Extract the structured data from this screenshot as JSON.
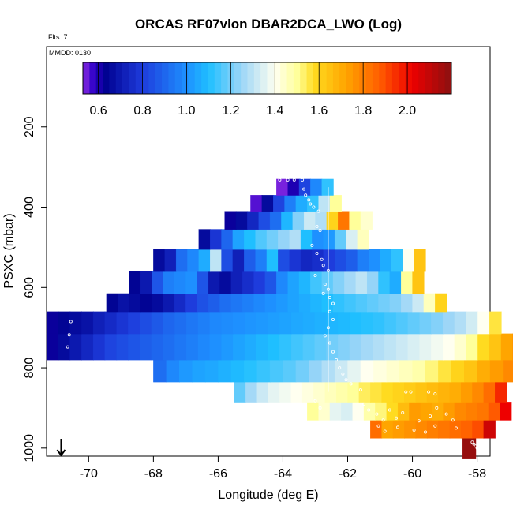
{
  "chart_data": {
    "type": "heatmap",
    "title": "ORCAS RF07vlon DBAR2DCA_LWO (Log)",
    "flights_label": "Flts: 7",
    "date_label": "MMDD: 0130",
    "xlabel": "Longitude (deg E)",
    "ylabel": "PSXC (mbar)",
    "xlim": [
      -71.3,
      -57.6
    ],
    "ylim": [
      1020,
      0
    ],
    "x_ticks": [
      -70,
      -68,
      -66,
      -64,
      -62,
      -60,
      -58
    ],
    "y_ticks": [
      200,
      400,
      600,
      800,
      1000
    ],
    "colorbar": {
      "range": [
        0.53,
        2.2
      ],
      "ticks": [
        0.6,
        0.8,
        1.0,
        1.2,
        1.4,
        1.6,
        1.8,
        2.0
      ],
      "tick_labels": [
        "0.6",
        "0.8",
        "1.0",
        "1.2",
        "1.4",
        "1.6",
        "1.8",
        "2.0"
      ],
      "stops": [
        {
          "v": 0.53,
          "c": "#8a2be2"
        },
        {
          "v": 0.58,
          "c": "#3000c8"
        },
        {
          "v": 0.63,
          "c": "#000090"
        },
        {
          "v": 0.8,
          "c": "#1e3cdc"
        },
        {
          "v": 1.0,
          "c": "#1e90ff"
        },
        {
          "v": 1.1,
          "c": "#1fbfff"
        },
        {
          "v": 1.25,
          "c": "#9dd6f7"
        },
        {
          "v": 1.4,
          "c": "#fffff0"
        },
        {
          "v": 1.5,
          "c": "#ffff9a"
        },
        {
          "v": 1.58,
          "c": "#ffdb20"
        },
        {
          "v": 1.72,
          "c": "#ffa500"
        },
        {
          "v": 1.88,
          "c": "#ff5a00"
        },
        {
          "v": 2.02,
          "c": "#ee0000"
        },
        {
          "v": 2.2,
          "c": "#8b1010"
        }
      ]
    },
    "surface_marker_lon": -70.85,
    "rows": [
      {
        "p": 1000,
        "lon0": -58.45,
        "dlon": 0.4,
        "v": [
          2.18
        ]
      },
      {
        "p": 950,
        "lon0": -61.3,
        "dlon": 0.35,
        "v": [
          1.84,
          1.72,
          1.74,
          1.76,
          1.78,
          1.8,
          1.82,
          1.84,
          1.86,
          1.9,
          2.08
        ]
      },
      {
        "p": 910,
        "lon0": -63.25,
        "dlon": 0.35,
        "v": [
          1.5,
          1.44,
          1.36,
          1.34,
          1.4,
          1.48,
          1.52,
          1.58,
          1.66,
          1.74,
          1.72,
          1.7,
          1.74,
          1.78,
          1.8,
          1.82,
          1.88,
          2.02
        ]
      },
      {
        "p": 860,
        "lon0": -65.5,
        "dlon": 0.35,
        "v": [
          1.18,
          1.26,
          1.32,
          1.36,
          1.38,
          1.4,
          1.42,
          1.44,
          1.46,
          1.48,
          1.5,
          1.54,
          1.56,
          1.58,
          1.6,
          1.62,
          1.64,
          1.66,
          1.68,
          1.7,
          1.74,
          1.78,
          1.84,
          1.96
        ]
      },
      {
        "p": 810,
        "lon0": -68.0,
        "dlon": 0.4,
        "v": [
          0.92,
          0.98,
          1.02,
          1.04,
          1.05,
          1.07,
          1.09,
          1.11,
          1.13,
          1.15,
          1.17,
          1.2,
          1.24,
          1.28,
          1.32,
          1.36,
          1.4,
          1.42,
          1.44,
          1.46,
          1.48,
          1.52,
          1.56,
          1.6,
          1.64,
          1.7,
          1.74,
          1.78,
          1.86
        ]
      },
      {
        "p": 750,
        "lon0": -71.3,
        "dlon": 0.36,
        "v": [
          0.62,
          0.66,
          0.7,
          0.74,
          0.78,
          0.82,
          0.84,
          0.86,
          0.88,
          0.9,
          0.92,
          0.94,
          0.96,
          0.98,
          1.0,
          1.02,
          1.04,
          1.06,
          1.08,
          1.1,
          1.12,
          1.14,
          1.16,
          1.18,
          1.2,
          1.22,
          1.24,
          1.26,
          1.28,
          1.3,
          1.32,
          1.34,
          1.36,
          1.38,
          1.4,
          1.44,
          1.5,
          1.58,
          1.64,
          1.72,
          1.78
        ]
      },
      {
        "p": 680,
        "lon0": -71.3,
        "dlon": 0.36,
        "v": [
          0.62,
          0.64,
          0.66,
          0.68,
          0.72,
          0.75,
          0.78,
          0.81,
          0.84,
          0.87,
          0.9,
          0.92,
          0.94,
          0.96,
          0.98,
          0.99,
          1.0,
          1.01,
          1.02,
          1.03,
          1.04,
          1.05,
          1.06,
          1.07,
          1.08,
          1.09,
          1.1,
          1.11,
          1.12,
          1.14,
          1.16,
          1.18,
          1.2,
          1.22,
          1.25,
          1.28,
          1.33,
          1.4,
          1.56
        ]
      },
      {
        "p": 640,
        "lon0": -69.45,
        "dlon": 0.35,
        "v": [
          0.64,
          0.68,
          0.66,
          0.64,
          0.66,
          0.7,
          0.75,
          0.8,
          0.85,
          0.88,
          0.92,
          0.94,
          0.96,
          0.98,
          1.0,
          1.02,
          1.04,
          1.06,
          1.08,
          1.1,
          1.12,
          1.14,
          1.16,
          1.18,
          1.2,
          1.22,
          1.26,
          1.32,
          1.46,
          1.6
        ]
      },
      {
        "p": 590,
        "lon0": -68.75,
        "dlon": 0.35,
        "v": [
          0.64,
          0.7,
          0.86,
          0.96,
          0.98,
          1.0,
          0.86,
          0.7,
          0.66,
          0.72,
          0.76,
          0.8,
          0.86,
          0.98,
          1.04,
          1.08,
          1.14,
          1.18,
          1.22,
          1.26,
          1.3,
          1.24,
          1.12,
          1.06,
          1.5,
          1.64
        ]
      },
      {
        "p": 530,
        "lon0": -68.0,
        "dlon": 0.35,
        "v": [
          0.66,
          0.72,
          0.92,
          0.98,
          1.06,
          1.3,
          0.84,
          0.72,
          0.88,
          0.96,
          1.1,
          0.84,
          0.78,
          0.74,
          0.76,
          0.8,
          0.84,
          0.88,
          0.96,
          1.0,
          1.06,
          1.12,
          1.4,
          1.64
        ]
      },
      {
        "p": 480,
        "lon0": -66.6,
        "dlon": 0.35,
        "v": [
          0.66,
          0.78,
          0.9,
          1.04,
          1.1,
          1.16,
          1.2,
          1.24,
          1.28,
          1.1,
          1.0,
          1.02,
          1.18,
          1.34,
          1.46
        ]
      },
      {
        "p": 430,
        "lon0": -65.8,
        "dlon": 0.35,
        "v": [
          0.62,
          0.66,
          0.74,
          0.84,
          0.92,
          1.08,
          1.22,
          1.32,
          1.28,
          1.6,
          1.82,
          1.5,
          1.44
        ]
      },
      {
        "p": 390,
        "lon0": -65.0,
        "dlon": 0.35,
        "v": [
          0.56,
          0.66,
          0.82,
          0.96,
          1.06,
          1.12,
          1.3,
          1.5
        ]
      },
      {
        "p": 350,
        "lon0": -64.2,
        "dlon": 0.35,
        "v": [
          0.54,
          0.6,
          0.82,
          0.98,
          1.12
        ]
      }
    ],
    "white_line": {
      "lon": -62.6,
      "p_from": 350,
      "p_to": 860
    },
    "markers": [
      [
        -70.55,
        685
      ],
      [
        -70.6,
        718
      ],
      [
        -70.65,
        748
      ],
      [
        -64.1,
        332
      ],
      [
        -63.85,
        332
      ],
      [
        -63.65,
        332
      ],
      [
        -63.4,
        332
      ],
      [
        -63.35,
        355
      ],
      [
        -63.3,
        370
      ],
      [
        -63.2,
        382
      ],
      [
        -63.15,
        392
      ],
      [
        -63.05,
        400
      ],
      [
        -62.9,
        410
      ],
      [
        -62.95,
        448
      ],
      [
        -62.85,
        458
      ],
      [
        -63.1,
        495
      ],
      [
        -62.95,
        515
      ],
      [
        -62.8,
        530
      ],
      [
        -62.75,
        545
      ],
      [
        -62.6,
        558
      ],
      [
        -63.0,
        570
      ],
      [
        -62.7,
        592
      ],
      [
        -62.6,
        605
      ],
      [
        -62.75,
        615
      ],
      [
        -62.55,
        625
      ],
      [
        -62.45,
        640
      ],
      [
        -62.55,
        660
      ],
      [
        -62.45,
        680
      ],
      [
        -62.6,
        700
      ],
      [
        -62.7,
        720
      ],
      [
        -62.55,
        738
      ],
      [
        -62.45,
        760
      ],
      [
        -62.35,
        780
      ],
      [
        -62.25,
        800
      ],
      [
        -62.15,
        815
      ],
      [
        -62.05,
        830
      ],
      [
        -61.9,
        840
      ],
      [
        -61.6,
        855
      ],
      [
        -60.2,
        860
      ],
      [
        -60.05,
        860
      ],
      [
        -59.5,
        860
      ],
      [
        -59.3,
        865
      ],
      [
        -63.0,
        882
      ],
      [
        -62.85,
        900
      ],
      [
        -61.5,
        890
      ],
      [
        -61.35,
        905
      ],
      [
        -61.1,
        915
      ],
      [
        -60.9,
        930
      ],
      [
        -60.7,
        905
      ],
      [
        -60.5,
        925
      ],
      [
        -60.3,
        912
      ],
      [
        -59.8,
        932
      ],
      [
        -59.45,
        920
      ],
      [
        -59.25,
        900
      ],
      [
        -58.95,
        915
      ],
      [
        -58.75,
        930
      ],
      [
        -61.05,
        945
      ],
      [
        -60.85,
        958
      ],
      [
        -60.45,
        948
      ],
      [
        -59.95,
        955
      ],
      [
        -59.6,
        960
      ],
      [
        -59.3,
        945
      ],
      [
        -58.65,
        950
      ],
      [
        -58.15,
        985
      ],
      [
        -58.1,
        990
      ],
      [
        -58.05,
        995
      ],
      [
        -58.0,
        1000
      ],
      [
        -57.95,
        1005
      ]
    ]
  }
}
